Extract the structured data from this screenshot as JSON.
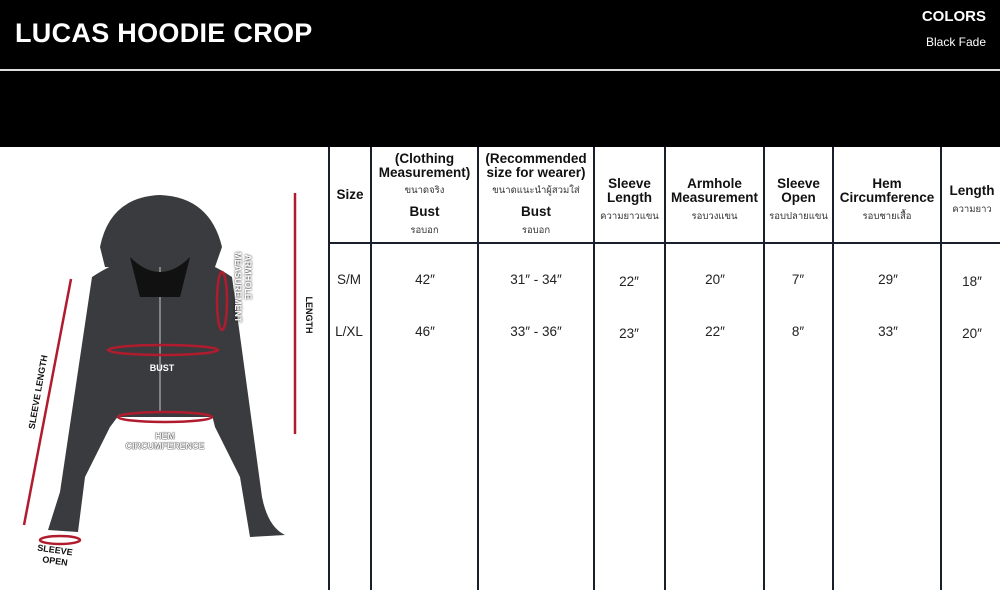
{
  "header": {
    "title": "LUCAS HOODIE CROP",
    "colors_label": "COLORS",
    "colors_value": "Black Fade"
  },
  "figure": {
    "labels": {
      "sleeve_length": "SLEEVE LENGTH",
      "armhole": "ARMHOLE MEASUREMENT",
      "length": "LENGTH",
      "bust": "BUST",
      "hem": "HEM CIRCUMFERENCE",
      "sleeve_open_1": "SLEEVE",
      "sleeve_open_2": "OPEN"
    },
    "accent": "#b01c2e"
  },
  "table": {
    "headers": [
      {
        "title": "Size"
      },
      {
        "pre": "(Clothing Measurement)",
        "pre_th": "ขนาดจริง",
        "title": "Bust",
        "th": "รอบอก"
      },
      {
        "pre": "(Recommended size for wearer)",
        "pre_th": "ขนาดแนะนำผู้สวมใส่",
        "title": "Bust",
        "th": "รอบอก"
      },
      {
        "title": "Sleeve Length",
        "th": "ความยาวแขน"
      },
      {
        "title": "Armhole Measurement",
        "th": "รอบวงแขน"
      },
      {
        "title": "Sleeve Open",
        "th": "รอบปลายแขน"
      },
      {
        "title": "Hem Circumference",
        "th": "รอบชายเสื้อ"
      },
      {
        "title": "Length",
        "th": "ความยาว"
      }
    ],
    "rows": [
      [
        "S/M",
        "42″",
        "31″ - 34″",
        "22″",
        "20″",
        "7″",
        "29″",
        "18″"
      ],
      [
        "L/XL",
        "46″",
        "33″ - 36″",
        "23″",
        "22″",
        "8″",
        "33″",
        "20″"
      ]
    ]
  }
}
